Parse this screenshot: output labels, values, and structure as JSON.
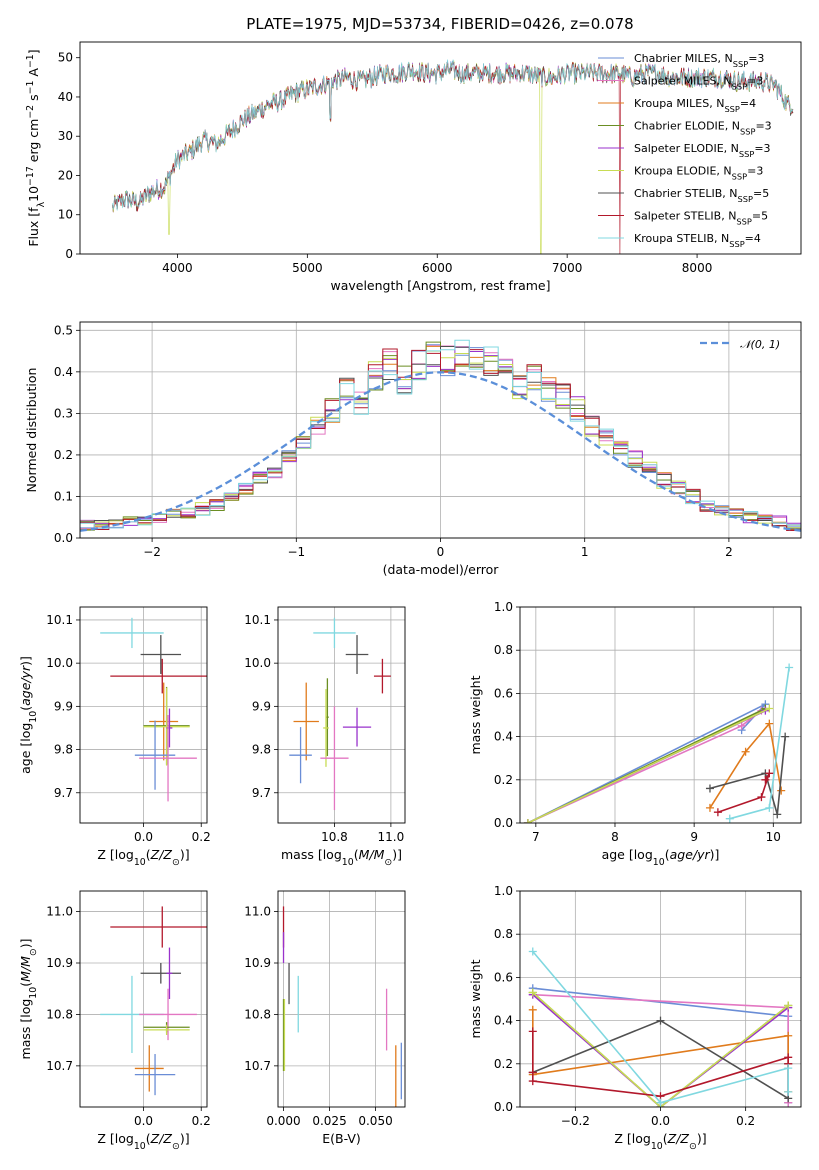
{
  "figure_title": "PLATE=1975, MJD=53734, FIBERID=0426, z=0.078",
  "colors": {
    "chabrier_miles": "#6a8dd6",
    "salpeter_miles": "#e377c2",
    "kroupa_miles": "#e07b1c",
    "chabrier_elodie": "#6b8e23",
    "salpeter_elodie": "#9932cc",
    "kroupa_elodie": "#c8dc54",
    "chabrier_stelib": "#505050",
    "salpeter_stelib": "#b2182b",
    "kroupa_stelib": "#80d8e0",
    "normal": "#5b8fd9"
  },
  "chart_data": [
    {
      "id": "spectrum",
      "type": "line",
      "title": "PLATE=1975, MJD=53734, FIBERID=0426, z=0.078",
      "xlabel": "wavelength [Angstrom, rest frame]",
      "ylabel": "Flux [f_λ 10^-17 erg cm^-2 s^-1 A^-1]",
      "xlim": [
        3250,
        8800
      ],
      "ylim": [
        0,
        54
      ],
      "xticks": [
        4000,
        5000,
        6000,
        7000,
        8000
      ],
      "yticks": [
        0,
        10,
        20,
        30,
        40,
        50
      ],
      "grid": false,
      "legend_position": "top-right",
      "continuum": {
        "x": [
          3500,
          3600,
          3700,
          3800,
          3900,
          4000,
          4100,
          4200,
          4300,
          4400,
          4500,
          4600,
          4700,
          4800,
          4900,
          5000,
          5100,
          5200,
          5300,
          5400,
          5500,
          5600,
          5700,
          5800,
          5900,
          6000,
          6100,
          6200,
          6300,
          6400,
          6500,
          6600,
          6700,
          6800,
          6900,
          7000,
          7100,
          7200,
          7300,
          7400,
          7500,
          7600,
          7700,
          7800,
          7900,
          8000,
          8100,
          8200,
          8300,
          8400,
          8500,
          8600,
          8700
        ],
        "y": [
          12,
          14,
          13,
          16,
          17,
          24,
          26,
          29,
          28,
          31,
          34,
          36,
          38,
          39,
          41,
          42,
          43,
          44,
          45,
          44,
          45,
          46,
          46,
          47,
          46,
          46,
          47,
          46,
          46,
          46,
          46,
          46,
          46,
          45,
          45,
          46,
          46,
          46,
          46,
          46,
          45,
          46,
          46,
          45,
          45,
          45,
          45,
          45,
          44,
          44,
          44,
          43,
          38
        ]
      },
      "dips": [
        {
          "x": 3934,
          "to": 5,
          "series": "Kroupa ELODIE",
          "comment": ""
        },
        {
          "x": 5177,
          "to": 33
        },
        {
          "x": 6796,
          "to": 0,
          "series": "Kroupa ELODIE"
        },
        {
          "x": 7405,
          "to": 0,
          "series": "Salpeter STELIB"
        }
      ],
      "series": [
        {
          "name": "Chabrier MILES",
          "label": "Chabrier MILES, N_SSP=3",
          "color_key": "chabrier_miles"
        },
        {
          "name": "Salpeter MILES",
          "label": "Salpeter MILES, N_SSP=3",
          "color_key": "salpeter_miles"
        },
        {
          "name": "Kroupa MILES",
          "label": "Kroupa MILES, N_SSP=4",
          "color_key": "kroupa_miles"
        },
        {
          "name": "Chabrier ELODIE",
          "label": "Chabrier ELODIE, N_SSP=3",
          "color_key": "chabrier_elodie"
        },
        {
          "name": "Salpeter ELODIE",
          "label": "Salpeter ELODIE, N_SSP=3",
          "color_key": "salpeter_elodie"
        },
        {
          "name": "Kroupa ELODIE",
          "label": "Kroupa ELODIE, N_SSP=3",
          "color_key": "kroupa_elodie"
        },
        {
          "name": "Chabrier STELIB",
          "label": "Chabrier STELIB, N_SSP=5",
          "color_key": "chabrier_stelib"
        },
        {
          "name": "Salpeter STELIB",
          "label": "Salpeter STELIB, N_SSP=5",
          "color_key": "salpeter_stelib"
        },
        {
          "name": "Kroupa STELIB",
          "label": "Kroupa STELIB, N_SSP=4",
          "color_key": "kroupa_stelib"
        }
      ]
    },
    {
      "id": "residuals",
      "type": "step",
      "xlabel": "(data-model)/error",
      "ylabel": "Normed distribution",
      "xlim": [
        -2.5,
        2.5
      ],
      "ylim": [
        0,
        0.52
      ],
      "xticks": [
        -2,
        -1,
        0,
        1,
        2
      ],
      "yticks": [
        0.0,
        0.1,
        0.2,
        0.3,
        0.4,
        0.5
      ],
      "grid": true,
      "legend_position": "top-right",
      "legend": [
        "𝒩(0, 1)"
      ],
      "bins": {
        "start": -2.5,
        "width": 0.1
      },
      "hist_mean": [
        0.03,
        0.03,
        0.035,
        0.04,
        0.045,
        0.05,
        0.055,
        0.06,
        0.07,
        0.08,
        0.1,
        0.12,
        0.14,
        0.16,
        0.19,
        0.23,
        0.27,
        0.31,
        0.35,
        0.33,
        0.39,
        0.42,
        0.38,
        0.42,
        0.44,
        0.43,
        0.44,
        0.44,
        0.43,
        0.41,
        0.37,
        0.38,
        0.36,
        0.34,
        0.31,
        0.27,
        0.24,
        0.22,
        0.19,
        0.17,
        0.14,
        0.12,
        0.1,
        0.08,
        0.07,
        0.06,
        0.05,
        0.045,
        0.04,
        0.03
      ],
      "normal_curve": {
        "mu": 0,
        "sigma": 1
      }
    },
    {
      "id": "z-age",
      "type": "errorbar",
      "xlabel": "Z [log10(Z/Z⊙)]",
      "ylabel": "age [log10(age/yr)]",
      "xlim": [
        -0.22,
        0.22
      ],
      "ylim": [
        9.63,
        10.13
      ],
      "xticks": [
        0.0,
        0.2
      ],
      "yticks": [
        9.7,
        9.8,
        9.9,
        10.0,
        10.1
      ],
      "grid": true,
      "points": [
        {
          "series": "Kroupa STELIB",
          "x": -0.04,
          "xerr": 0.11,
          "y": 10.07,
          "yerr": 0.035
        },
        {
          "series": "Chabrier STELIB",
          "x": 0.06,
          "xerr": 0.07,
          "y": 10.02,
          "yerr": 0.045
        },
        {
          "series": "Salpeter STELIB",
          "x": 0.065,
          "xerr": 0.18,
          "y": 9.97,
          "yerr": 0.04
        },
        {
          "series": "Kroupa MILES",
          "x": 0.07,
          "xerr": 0.05,
          "y": 9.865,
          "yerr": 0.09
        },
        {
          "series": "Chabrier ELODIE",
          "x": 0.08,
          "xerr": 0.08,
          "y": 9.855,
          "yerr": 0.09
        },
        {
          "series": "Kroupa ELODIE",
          "x": 0.08,
          "xerr": 0.08,
          "y": 9.853,
          "yerr": 0.09
        },
        {
          "series": "Salpeter ELODIE",
          "x": 0.09,
          "xerr": 0.01,
          "y": 9.85,
          "yerr": 0.045
        },
        {
          "series": "Chabrier MILES",
          "x": 0.04,
          "xerr": 0.07,
          "y": 9.787,
          "yerr": 0.08
        },
        {
          "series": "Salpeter MILES",
          "x": 0.085,
          "xerr": 0.1,
          "y": 9.78,
          "yerr": 0.1
        }
      ]
    },
    {
      "id": "mass-age",
      "type": "errorbar",
      "xlabel": "mass [log10(M/M⊙)]",
      "ylabel": "",
      "xlim": [
        10.6,
        11.05
      ],
      "ylim": [
        9.63,
        10.13
      ],
      "xticks": [
        10.8,
        11.0
      ],
      "yticks": [
        9.7,
        9.8,
        9.9,
        10.0,
        10.1
      ],
      "grid": true,
      "points": [
        {
          "series": "Kroupa STELIB",
          "x": 10.8,
          "xerr": 0.075,
          "y": 10.07,
          "yerr": 0.035
        },
        {
          "series": "Chabrier STELIB",
          "x": 10.88,
          "xerr": 0.04,
          "y": 10.02,
          "yerr": 0.045
        },
        {
          "series": "Salpeter STELIB",
          "x": 10.97,
          "xerr": 0.03,
          "y": 9.97,
          "yerr": 0.04
        },
        {
          "series": "Kroupa MILES",
          "x": 10.7,
          "xerr": 0.045,
          "y": 9.865,
          "yerr": 0.09
        },
        {
          "series": "Chabrier ELODIE",
          "x": 10.775,
          "xerr": 0.005,
          "y": 9.875,
          "yerr": 0.09
        },
        {
          "series": "Kroupa ELODIE",
          "x": 10.77,
          "xerr": 0.01,
          "y": 9.85,
          "yerr": 0.09
        },
        {
          "series": "Salpeter ELODIE",
          "x": 10.88,
          "xerr": 0.05,
          "y": 9.852,
          "yerr": 0.045
        },
        {
          "series": "Chabrier MILES",
          "x": 10.68,
          "xerr": 0.04,
          "y": 9.787,
          "yerr": 0.065
        },
        {
          "series": "Salpeter MILES",
          "x": 10.8,
          "xerr": 0.05,
          "y": 9.78,
          "yerr": 0.12
        }
      ]
    },
    {
      "id": "age-weight",
      "type": "line",
      "xlabel": "age [log10(age/yr)]",
      "ylabel": "mass weight",
      "xlim": [
        6.8,
        10.35
      ],
      "ylim": [
        0.0,
        1.0
      ],
      "xticks": [
        7,
        8,
        9,
        10
      ],
      "yticks": [
        0.0,
        0.2,
        0.4,
        0.6,
        0.8,
        1.0
      ],
      "grid": true,
      "series": [
        {
          "name": "Chabrier MILES",
          "x": [
            6.9,
            9.9,
            9.6
          ],
          "y": [
            0.0,
            0.55,
            0.43
          ]
        },
        {
          "name": "Salpeter MILES",
          "x": [
            6.9,
            9.6,
            9.85
          ],
          "y": [
            0.0,
            0.45,
            0.52
          ]
        },
        {
          "name": "Kroupa MILES",
          "x": [
            9.2,
            9.65,
            9.95,
            10.1
          ],
          "y": [
            0.07,
            0.33,
            0.46,
            0.15
          ]
        },
        {
          "name": "Chabrier ELODIE",
          "x": [
            6.9,
            9.9
          ],
          "y": [
            0.0,
            0.53
          ]
        },
        {
          "name": "Salpeter ELODIE",
          "x": [
            6.9,
            9.9
          ],
          "y": [
            0.0,
            0.52
          ]
        },
        {
          "name": "Kroupa ELODIE",
          "x": [
            6.9,
            9.95
          ],
          "y": [
            0.0,
            0.53
          ]
        },
        {
          "name": "Chabrier STELIB",
          "x": [
            9.2,
            9.9,
            10.05,
            10.15
          ],
          "y": [
            0.16,
            0.23,
            0.04,
            0.4
          ]
        },
        {
          "name": "Salpeter STELIB",
          "x": [
            9.3,
            9.85,
            9.95,
            9.9
          ],
          "y": [
            0.05,
            0.12,
            0.23,
            0.2
          ]
        },
        {
          "name": "Kroupa STELIB",
          "x": [
            9.45,
            9.95,
            10.2
          ],
          "y": [
            0.02,
            0.07,
            0.72
          ]
        }
      ]
    },
    {
      "id": "z-mass",
      "type": "errorbar",
      "xlabel": "Z [log10(Z/Z⊙)]",
      "ylabel": "mass [log10(M/M⊙)]",
      "xlim": [
        -0.22,
        0.22
      ],
      "ylim": [
        10.62,
        11.04
      ],
      "xticks": [
        0.0,
        0.2
      ],
      "yticks": [
        10.7,
        10.8,
        10.9,
        11.0
      ],
      "grid": true,
      "points": [
        {
          "series": "Salpeter STELIB",
          "x": 0.065,
          "xerr": 0.18,
          "y": 10.97,
          "yerr": 0.04
        },
        {
          "series": "Chabrier STELIB",
          "x": 0.06,
          "xerr": 0.07,
          "y": 10.88,
          "yerr": 0.02
        },
        {
          "series": "Salpeter ELODIE",
          "x": 0.09,
          "xerr": 0.01,
          "y": 10.88,
          "yerr": 0.05
        },
        {
          "series": "Kroupa STELIB",
          "x": -0.04,
          "xerr": 0.11,
          "y": 10.8,
          "yerr": 0.075
        },
        {
          "series": "Salpeter MILES",
          "x": 0.085,
          "xerr": 0.1,
          "y": 10.8,
          "yerr": 0.05
        },
        {
          "series": "Chabrier ELODIE",
          "x": 0.08,
          "xerr": 0.08,
          "y": 10.775,
          "yerr": 0.01
        },
        {
          "series": "Kroupa ELODIE",
          "x": 0.08,
          "xerr": 0.08,
          "y": 10.77,
          "yerr": 0.01
        },
        {
          "series": "Kroupa MILES",
          "x": 0.02,
          "xerr": 0.05,
          "y": 10.695,
          "yerr": 0.045
        },
        {
          "series": "Chabrier MILES",
          "x": 0.04,
          "xerr": 0.07,
          "y": 10.683,
          "yerr": 0.04
        }
      ]
    },
    {
      "id": "ebv-mass",
      "type": "errorbar",
      "xlabel": "E(B-V)",
      "ylabel": "",
      "xlim": [
        -0.003,
        0.066
      ],
      "ylim": [
        10.62,
        11.04
      ],
      "xticks": [
        0.0,
        0.025,
        0.05
      ],
      "xtick_labels": [
        "0.000",
        "0.025",
        "0.050"
      ],
      "yticks": [
        10.7,
        10.8,
        10.9,
        11.0
      ],
      "grid": true,
      "points": [
        {
          "series": "Salpeter STELIB",
          "x": 0.0,
          "xerr": 0.0,
          "y": 10.97,
          "yerr": 0.04
        },
        {
          "series": "Salpeter ELODIE",
          "x": 0.0,
          "xerr": 0.0,
          "y": 10.93,
          "yerr": 0.03
        },
        {
          "series": "Chabrier STELIB",
          "x": 0.003,
          "xerr": 0.0,
          "y": 10.86,
          "yerr": 0.04
        },
        {
          "series": "Chabrier ELODIE",
          "x": 0.0,
          "xerr": 0.0,
          "y": 10.76,
          "yerr": 0.07
        },
        {
          "series": "Kroupa ELODIE",
          "x": 0.0005,
          "xerr": 0.0,
          "y": 10.76,
          "yerr": 0.07
        },
        {
          "series": "Kroupa STELIB",
          "x": 0.008,
          "xerr": 0.0,
          "y": 10.82,
          "yerr": 0.055
        },
        {
          "series": "Salpeter MILES",
          "x": 0.056,
          "xerr": 0.0,
          "y": 10.79,
          "yerr": 0.06
        },
        {
          "series": "Kroupa MILES",
          "x": 0.061,
          "xerr": 0.0,
          "y": 10.68,
          "yerr": 0.06
        },
        {
          "series": "Chabrier MILES",
          "x": 0.064,
          "xerr": 0.0,
          "y": 10.69,
          "yerr": 0.055
        }
      ]
    },
    {
      "id": "z-weight",
      "type": "line",
      "xlabel": "Z [log10(Z/Z⊙)]",
      "ylabel": "mass weight",
      "xlim": [
        -0.33,
        0.33
      ],
      "ylim": [
        0.0,
        1.0
      ],
      "xticks": [
        -0.2,
        0.0,
        0.2
      ],
      "yticks": [
        0.0,
        0.2,
        0.4,
        0.6,
        0.8,
        1.0
      ],
      "grid": true,
      "series": [
        {
          "name": "Chabrier MILES",
          "x": [
            -0.3,
            0.3,
            0.3
          ],
          "y": [
            0.55,
            0.42,
            0.02
          ]
        },
        {
          "name": "Salpeter MILES",
          "x": [
            -0.3,
            0.3,
            0.3
          ],
          "y": [
            0.52,
            0.46,
            0.02
          ]
        },
        {
          "name": "Kroupa MILES",
          "x": [
            -0.3,
            -0.3,
            0.3,
            0.3
          ],
          "y": [
            0.45,
            0.15,
            0.33,
            0.07
          ]
        },
        {
          "name": "Chabrier ELODIE",
          "x": [
            -0.3,
            0.0,
            0.3
          ],
          "y": [
            0.53,
            0.0,
            0.47
          ]
        },
        {
          "name": "Salpeter ELODIE",
          "x": [
            -0.3,
            0.0,
            0.3
          ],
          "y": [
            0.52,
            0.0,
            0.46
          ]
        },
        {
          "name": "Kroupa ELODIE",
          "x": [
            -0.3,
            0.0,
            0.3
          ],
          "y": [
            0.53,
            0.0,
            0.47
          ]
        },
        {
          "name": "Chabrier STELIB",
          "x": [
            -0.3,
            0.0,
            0.3,
            0.3
          ],
          "y": [
            0.16,
            0.4,
            0.04,
            0.2
          ]
        },
        {
          "name": "Salpeter STELIB",
          "x": [
            -0.3,
            -0.3,
            -0.3,
            0.0,
            0.3,
            0.3
          ],
          "y": [
            0.35,
            0.16,
            0.12,
            0.05,
            0.23,
            0.2
          ]
        },
        {
          "name": "Kroupa STELIB",
          "x": [
            -0.3,
            0.0,
            0.3,
            0.3
          ],
          "y": [
            0.72,
            0.02,
            0.18,
            0.07
          ]
        }
      ]
    }
  ]
}
